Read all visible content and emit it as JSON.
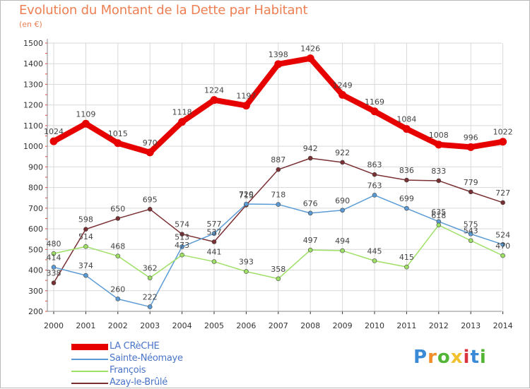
{
  "header": {
    "title": "Evolution du Montant de la Dette par Habitant",
    "subtitle": "(en €)"
  },
  "colors": {
    "accent": "#ed7f52",
    "grid": "#d9d9d9",
    "legend_text": "#4a74c9"
  },
  "logo": {
    "letters": [
      "P",
      "r",
      "o",
      "x",
      "i",
      "t",
      "i"
    ]
  },
  "chart_data": {
    "type": "line",
    "title": "Evolution du Montant de la Dette par Habitant",
    "subtitle": "(en €)",
    "xlabel": "",
    "ylabel": "",
    "x": [
      "2000",
      "2001",
      "2002",
      "2003",
      "2004",
      "2005",
      "2006",
      "2007",
      "2008",
      "2009",
      "2010",
      "2011",
      "2012",
      "2013",
      "2014"
    ],
    "ylim": [
      200,
      1500
    ],
    "yticks": [
      200,
      300,
      400,
      500,
      600,
      700,
      800,
      900,
      1000,
      1100,
      1200,
      1300,
      1400,
      1500
    ],
    "grid": true,
    "legend_position": "bottom-left",
    "series": [
      {
        "name": "LA CRèCHE",
        "color": "#e60000",
        "values": [
          1024,
          1109,
          1015,
          970,
          1118,
          1224,
          1197,
          1398,
          1426,
          1249,
          1169,
          1084,
          1008,
          996,
          1022
        ]
      },
      {
        "name": "Sainte-Néomaye",
        "color": "#5b9bd5",
        "values": [
          414,
          374,
          260,
          222,
          513,
          577,
          720,
          718,
          676,
          690,
          763,
          699,
          635,
          575,
          524
        ]
      },
      {
        "name": "François",
        "color": "#9ee065",
        "values": [
          480,
          514,
          468,
          362,
          473,
          441,
          393,
          358,
          497,
          494,
          445,
          415,
          618,
          543,
          470
        ]
      },
      {
        "name": "Azay-le-Brûlé",
        "color": "#7a2f32",
        "values": [
          338,
          598,
          650,
          695,
          574,
          537,
          715,
          887,
          942,
          922,
          863,
          836,
          833,
          779,
          727
        ]
      }
    ]
  }
}
